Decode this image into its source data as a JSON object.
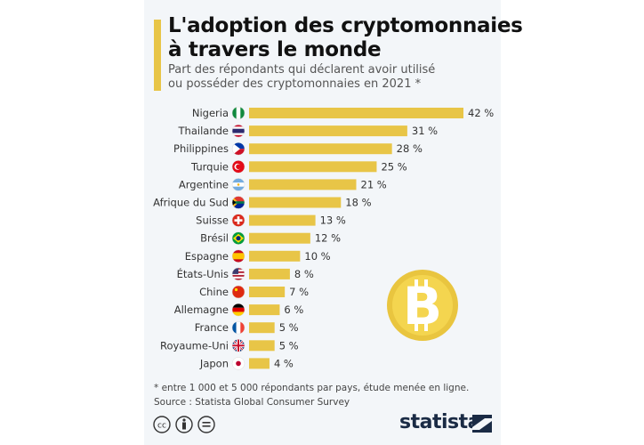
{
  "title_line1": "L'adoption des cryptomonnaies",
  "title_line2": "à travers le monde",
  "subtitle_line1": "Part des répondants qui déclarent avoir utilisé",
  "subtitle_line2": "ou posséder des cryptomonnaies en 2021 *",
  "note": "* entre 1 000 et 5 000 répondants par pays, étude menée en ligne.",
  "source": "Source : Statista Global Consumer Survey",
  "brand": "statista",
  "colors": {
    "bar": "#e8c547",
    "accent": "#e8c547",
    "coin": "#f2d24b",
    "coin_symbol": "#ffffff"
  },
  "icons": [
    "creative-commons-icon",
    "attribution-icon",
    "no-derivatives-icon",
    "bitcoin-coin-icon",
    "statista-logo"
  ],
  "chart_data": {
    "type": "bar",
    "orientation": "horizontal",
    "unit": "%",
    "categories": [
      "Nigeria",
      "Thailande",
      "Philippines",
      "Turquie",
      "Argentine",
      "Afrique du Sud",
      "Suisse",
      "Brésil",
      "Espagne",
      "États-Unis",
      "Chine",
      "Allemagne",
      "France",
      "Royaume-Uni",
      "Japon"
    ],
    "flags": [
      "nigeria",
      "thailand",
      "philippines",
      "turkey",
      "argentina",
      "south-africa",
      "switzerland",
      "brazil",
      "spain",
      "usa",
      "china",
      "germany",
      "france",
      "uk",
      "japan"
    ],
    "values": [
      42,
      31,
      28,
      25,
      21,
      18,
      13,
      12,
      10,
      8,
      7,
      6,
      5,
      5,
      4
    ],
    "value_labels": [
      "42 %",
      "31 %",
      "28 %",
      "25 %",
      "21 %",
      "18 %",
      "13 %",
      "12 %",
      "10 %",
      "8 %",
      "7 %",
      "6 %",
      "5 %",
      "5 %",
      "4 %"
    ],
    "xlim": [
      0,
      42
    ],
    "grid": false
  }
}
